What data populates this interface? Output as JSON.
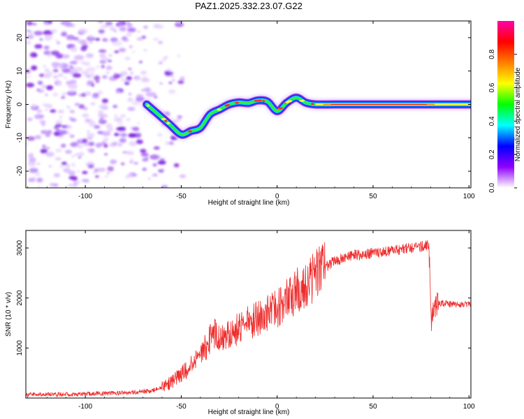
{
  "title": "PAZ1.2025.332.23.07.G22",
  "chart_data": [
    {
      "type": "heatmap",
      "name": "spectrogram",
      "xlabel": "Height of straight line (km)",
      "ylabel": "Frequency (Hz)",
      "xlim": [
        -131,
        101
      ],
      "ylim": [
        -25,
        25
      ],
      "xticks": [
        -100,
        -50,
        0,
        50,
        100
      ],
      "yticks": [
        -20,
        -10,
        0,
        10,
        20
      ],
      "noise_region_x": [
        -131,
        -57
      ],
      "ridge_points_x": [
        -68,
        -62,
        -56,
        -50,
        -45,
        -40,
        -35,
        -30,
        -25,
        -20,
        -15,
        -10,
        -5,
        0,
        5,
        10,
        15,
        20,
        30,
        40,
        50,
        60,
        70,
        80,
        90,
        101
      ],
      "ridge_points_y": [
        0,
        -3,
        -6,
        -9,
        -8,
        -7,
        -3,
        -1.5,
        0,
        0.6,
        0.4,
        1.2,
        0.8,
        -2,
        0.5,
        2,
        0.5,
        0,
        0,
        0,
        0,
        0,
        0,
        0,
        0,
        0
      ],
      "colorbar": {
        "label": "Normalized spectral amplitude",
        "range": [
          0,
          1
        ],
        "ticks": [
          "0.0",
          "0.2",
          "0.4",
          "0.6",
          "0.8"
        ],
        "colors": [
          "#ffffff",
          "#8f00ff",
          "#0000ff",
          "#00ffff",
          "#00ff00",
          "#ffff00",
          "#ff7f00",
          "#ff0000",
          "#ff00aa"
        ]
      }
    },
    {
      "type": "line",
      "name": "snr",
      "xlabel": "Height of straight line (km)",
      "ylabel": "SNR (10 * v/v)",
      "xlim": [
        -131,
        101
      ],
      "ylim": [
        0,
        3350
      ],
      "xticks": [
        -100,
        -50,
        0,
        50,
        100
      ],
      "yticks": [
        1000,
        2000,
        3000
      ],
      "series": [
        {
          "name": "SNR",
          "color": "#ee2b2b",
          "x": [
            -131,
            -110,
            -90,
            -75,
            -65,
            -60,
            -55,
            -50,
            -45,
            -40,
            -36,
            -34,
            -30,
            -25,
            -20,
            -15,
            -10,
            -5,
            0,
            5,
            10,
            15,
            20,
            25,
            30,
            40,
            50,
            60,
            70,
            79,
            80.5,
            82,
            85,
            90,
            100,
            101
          ],
          "y": [
            70,
            75,
            90,
            110,
            150,
            220,
            320,
            480,
            650,
            820,
            1050,
            1350,
            1150,
            1250,
            1400,
            1500,
            1600,
            1700,
            1800,
            1950,
            2150,
            2300,
            2450,
            2600,
            2750,
            2850,
            2900,
            2950,
            3000,
            3050,
            1500,
            1850,
            1900,
            1880,
            1860,
            1860
          ]
        }
      ]
    }
  ]
}
